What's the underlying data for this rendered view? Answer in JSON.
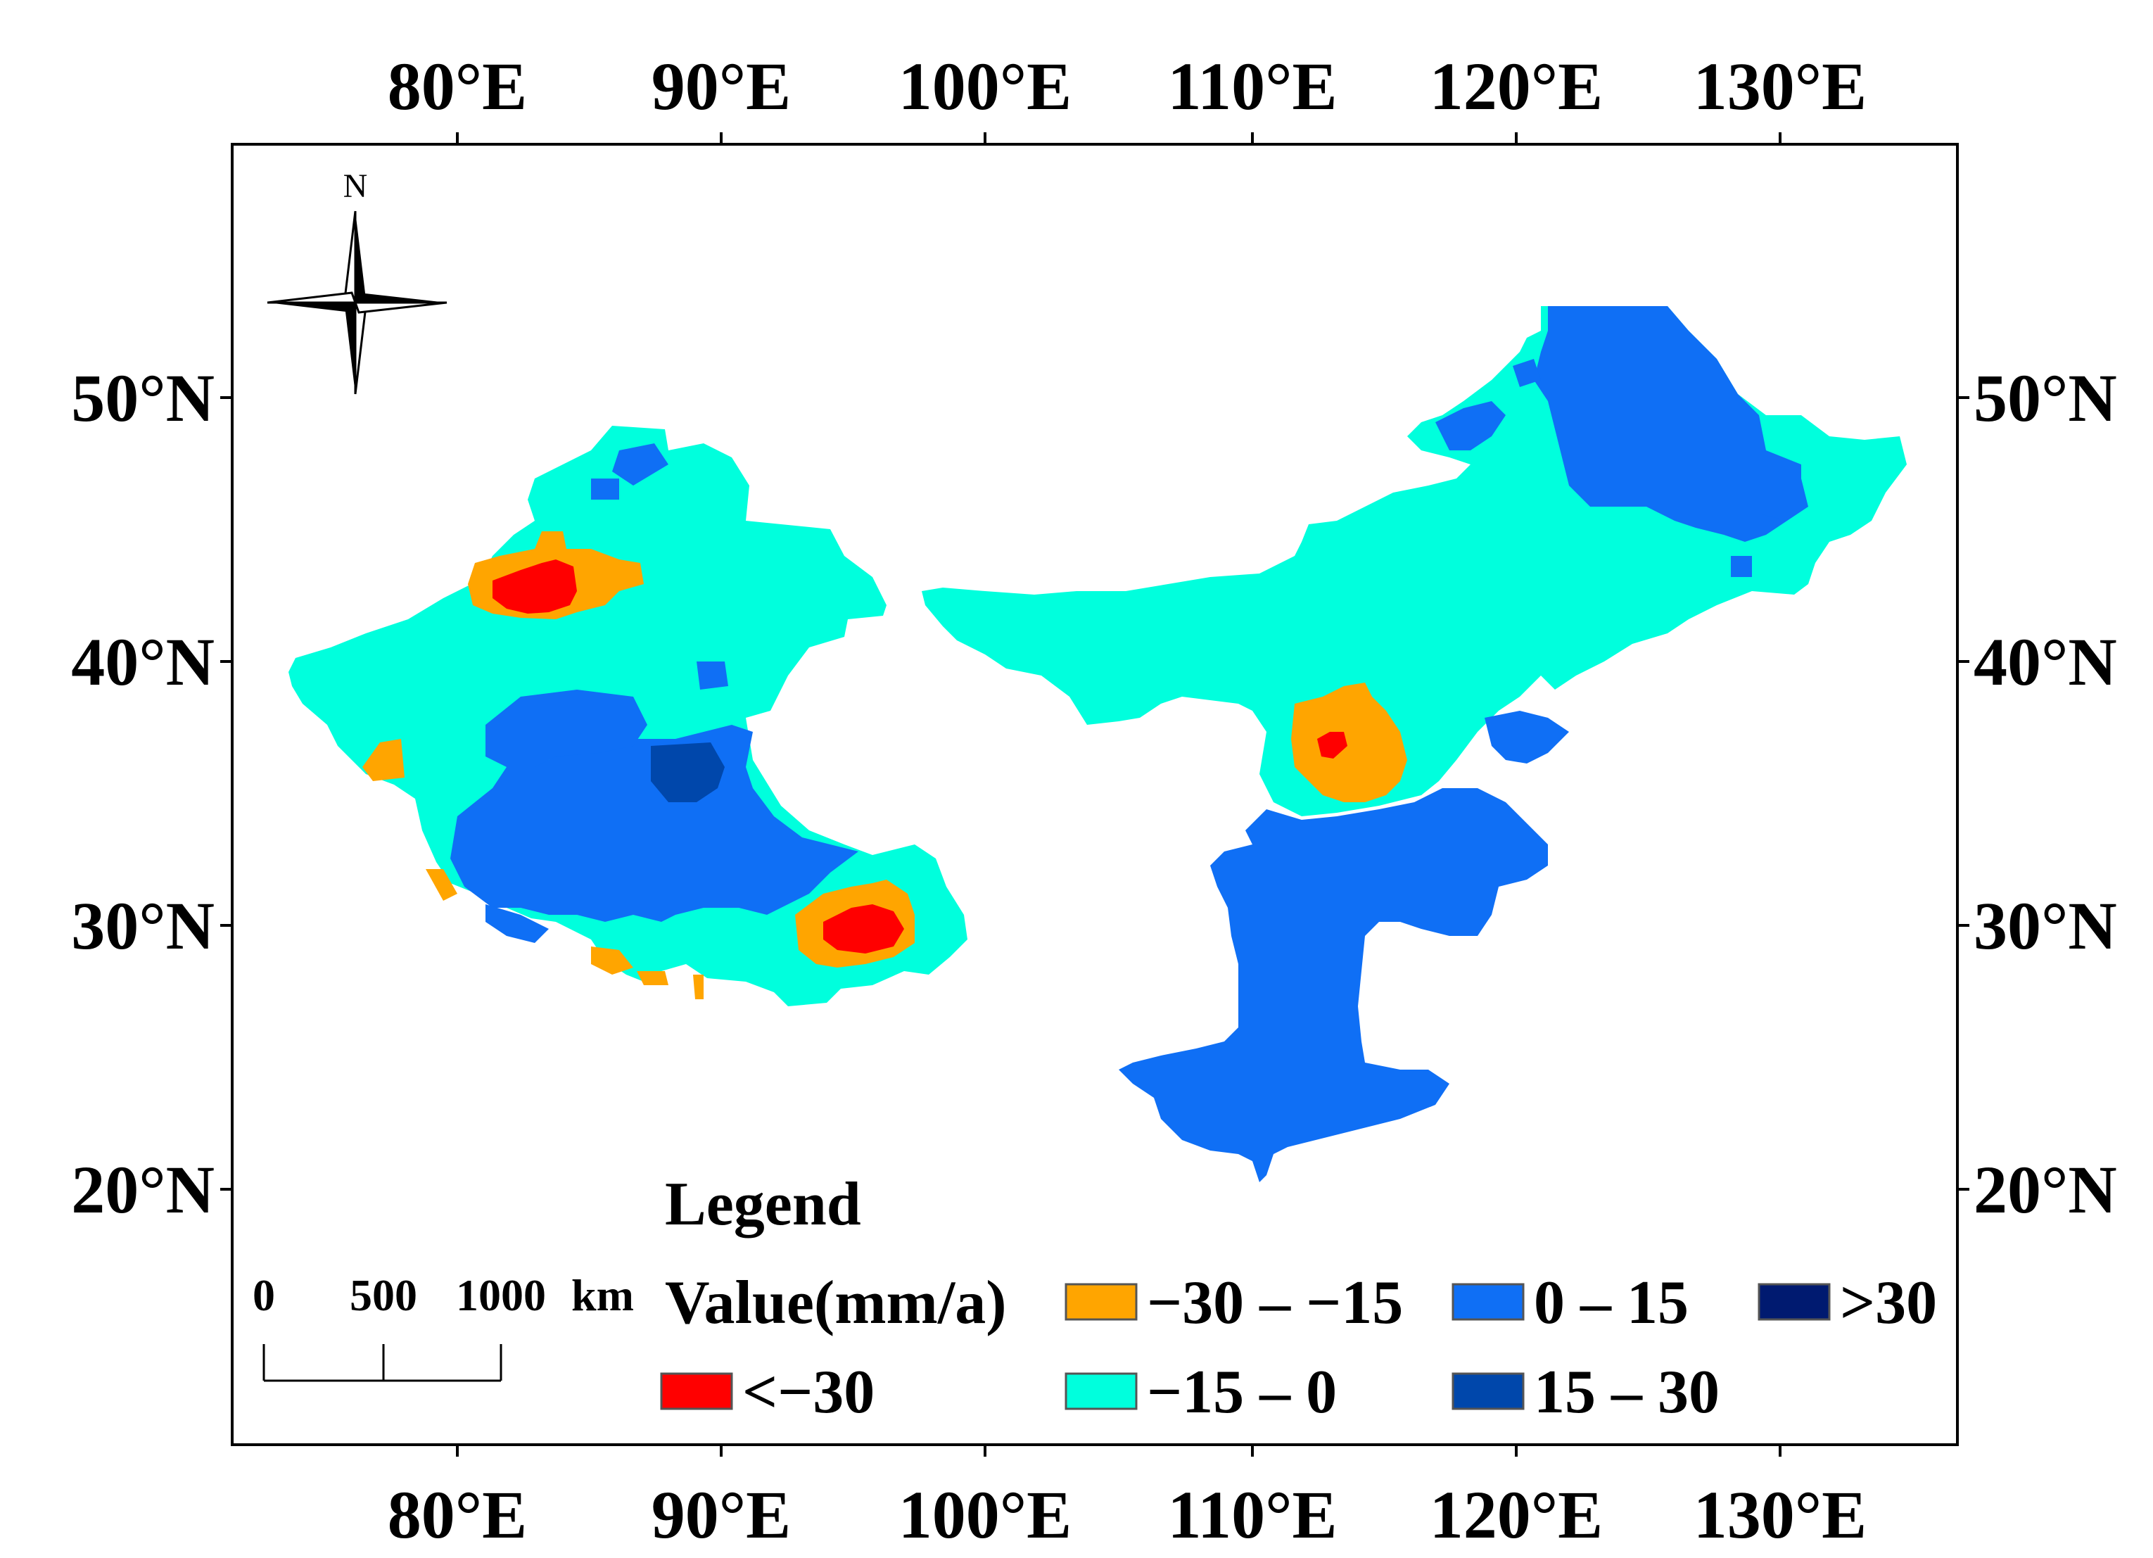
{
  "map": {
    "lon_ticks": [
      "80°E",
      "90°E",
      "100°E",
      "110°E",
      "120°E",
      "130°E"
    ],
    "lat_ticks": [
      "50°N",
      "40°N",
      "30°N",
      "20°N"
    ]
  },
  "north_arrow": {
    "label": "N",
    "icon": "north-arrow-icon"
  },
  "scale_bar": {
    "labels": [
      "0",
      "500",
      "1000"
    ],
    "unit": "km"
  },
  "legend": {
    "title": "Legend",
    "value_label": "Value(mm/a)",
    "classes": [
      {
        "label": "<−30",
        "color": "#ff0000"
      },
      {
        "label": "−30 – −15",
        "color": "#ffa500"
      },
      {
        "label": "−15 – 0",
        "color": "#00ffdd"
      },
      {
        "label": "0 – 15",
        "color": "#0f6ff5"
      },
      {
        "label": "15 – 30",
        "color": "#0047ab"
      },
      {
        "label": ">30",
        "color": "#001a70"
      }
    ]
  },
  "colors": {
    "neg_high": "#ff0000",
    "neg_mid": "#ffa500",
    "neg_low": "#00ffdd",
    "pos_low": "#0f6ff5",
    "pos_mid": "#0047ab",
    "pos_high": "#001a70"
  }
}
